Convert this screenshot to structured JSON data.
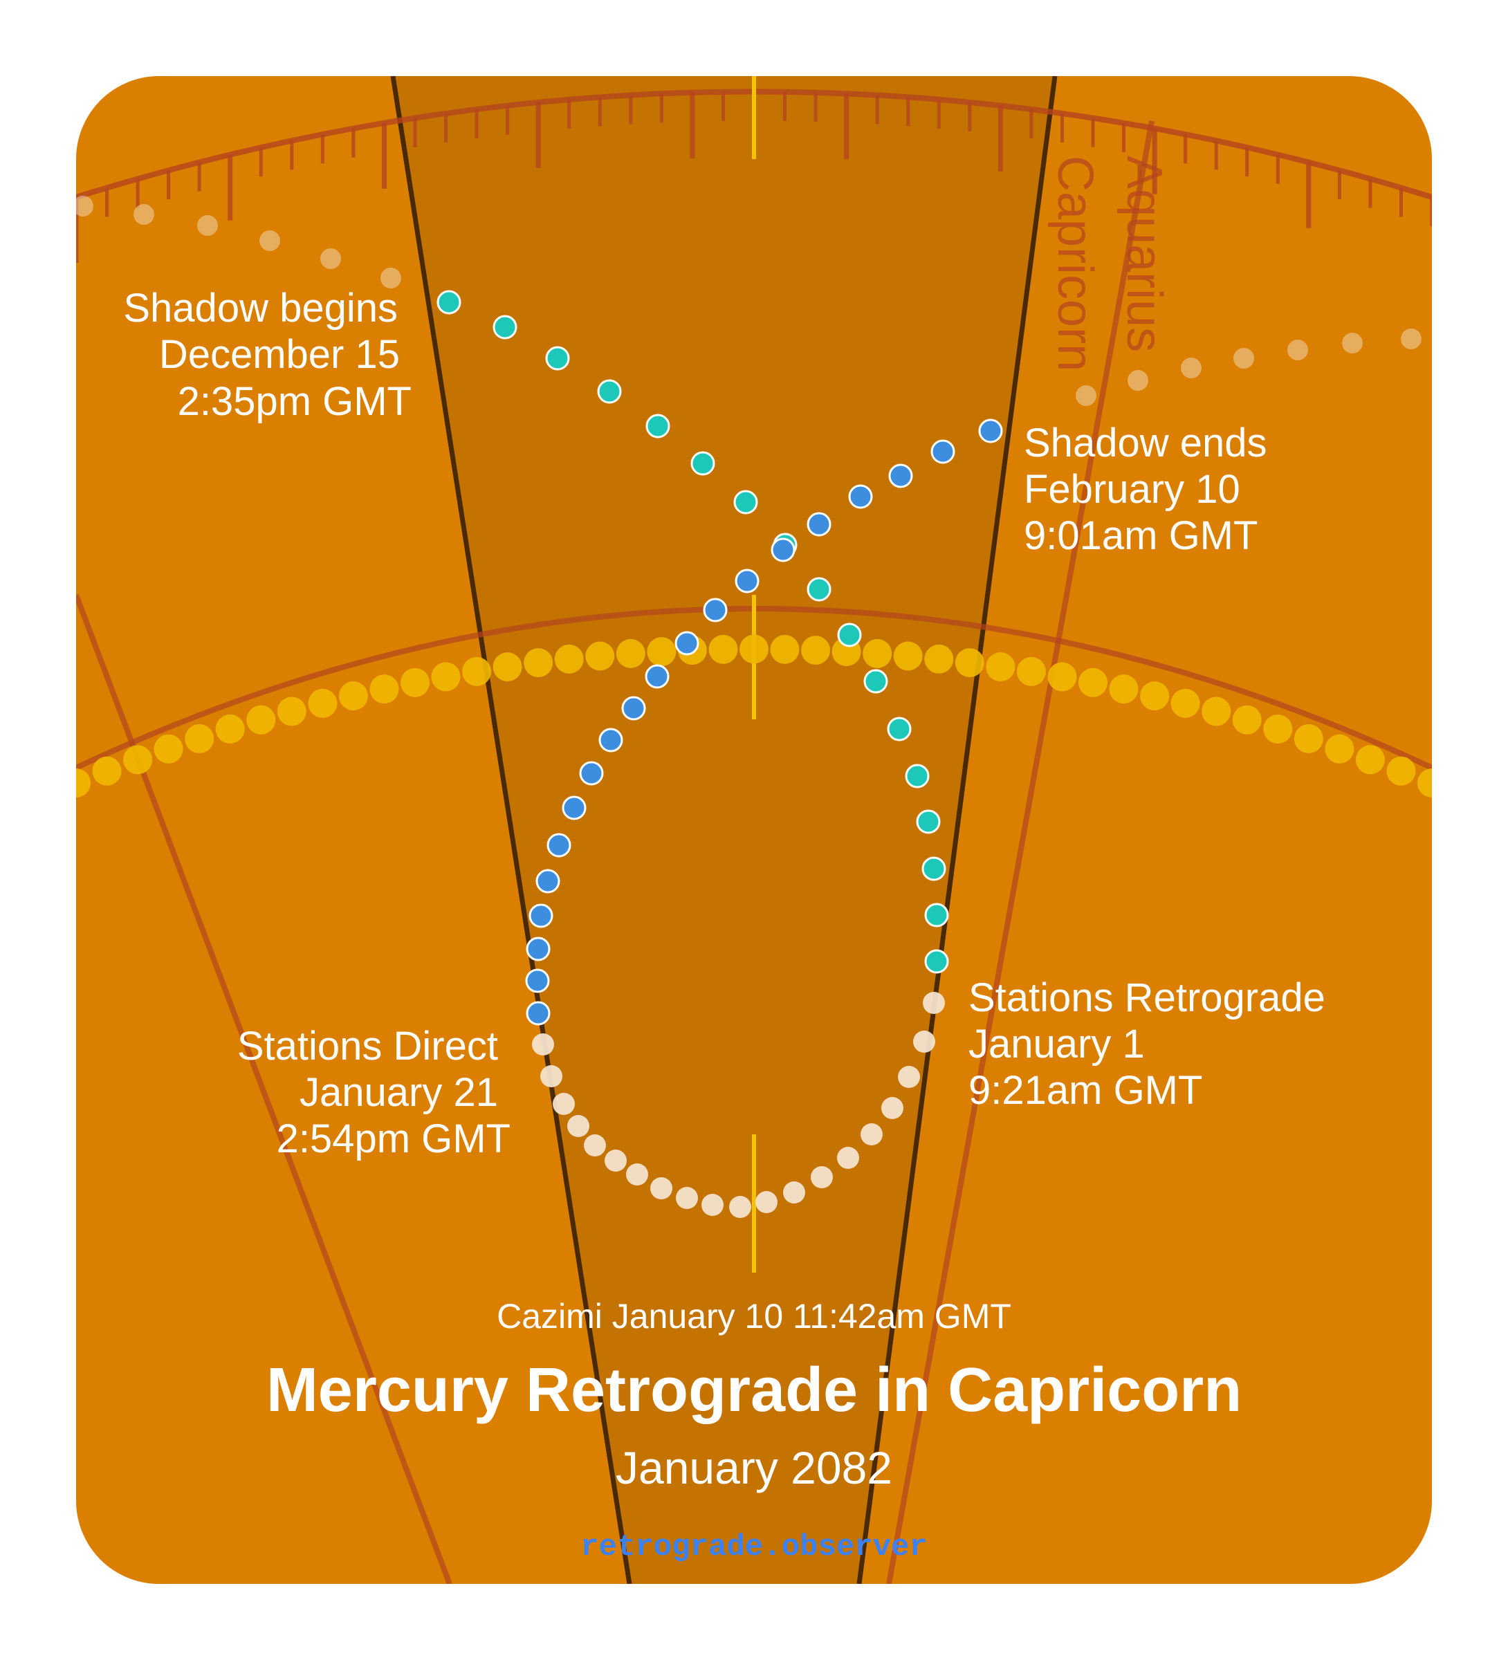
{
  "title": "Mercury Retrograde in Capricorn",
  "subtitle": "January 2082",
  "site": "retrograde.observer",
  "cazimi": "Cazimi January 10 11:42am GMT",
  "signs": [
    "Capricorn",
    "Aquarius"
  ],
  "events": {
    "shadow_begins": [
      "Shadow begins",
      "December 15",
      "2:35pm GMT"
    ],
    "shadow_ends": [
      "Shadow ends",
      "February 10",
      "9:01am GMT"
    ],
    "stations_retrograde": [
      "Stations Retrograde",
      "January 1",
      "9:21am GMT"
    ],
    "stations_direct": [
      "Stations Direct",
      "January 21",
      "2:54pm GMT"
    ]
  },
  "colors": {
    "background": "#db7f00",
    "retrograde_band": "#c47200",
    "pre_shadow_dots": "#1ec8b8",
    "post_shadow_dots": "#3e8ee0",
    "retrograde_dots": "#f6e6d2",
    "sun_dots": "#f2b800",
    "site_link": "#3b82f6"
  },
  "icons": [
    "pre-shadow-dot",
    "post-shadow-dot",
    "retrograde-dot",
    "sun-path-dot"
  ]
}
